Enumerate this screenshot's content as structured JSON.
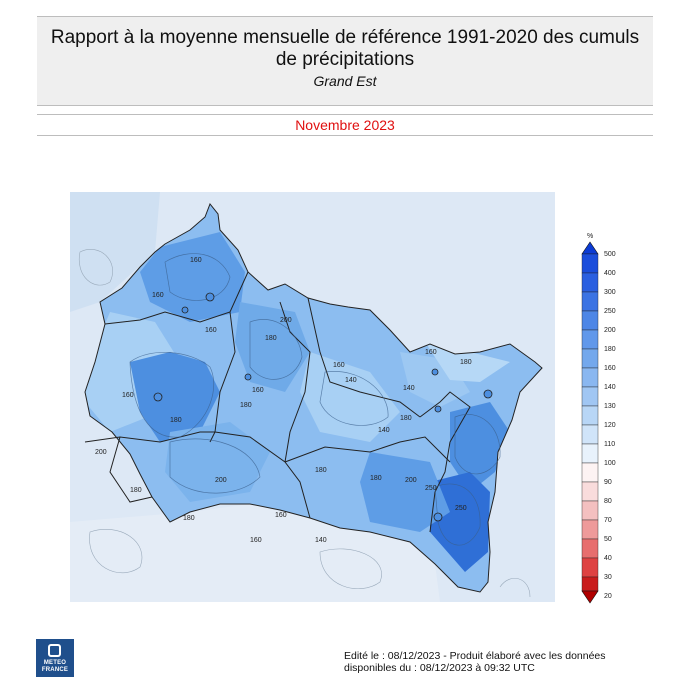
{
  "header": {
    "title_line1": "Rapport à la moyenne mensuelle de référence 1991-2020 des cumuls",
    "title_line2": "de précipitations",
    "region": "Grand Est",
    "month": "Novembre 2023"
  },
  "colors": {
    "month": "#e01010",
    "map_light": "#a8d0f4",
    "map_mid": "#6faae8",
    "map_dark": "#4d8fe0",
    "map_darkest": "#2f6fd6",
    "outside": "#dde8f5"
  },
  "legend": {
    "unit": "%",
    "levels": [
      "500",
      "400",
      "300",
      "250",
      "200",
      "180",
      "160",
      "140",
      "130",
      "120",
      "110",
      "100",
      "90",
      "80",
      "70",
      "50",
      "40",
      "30",
      "20"
    ]
  },
  "map_labels": [
    "160",
    "160",
    "160",
    "180",
    "200",
    "160",
    "180",
    "160",
    "180",
    "200",
    "140",
    "140",
    "160",
    "140",
    "160",
    "180",
    "180",
    "180",
    "200",
    "180",
    "200",
    "250",
    "250",
    "180",
    "160",
    "160",
    "180",
    "140"
  ],
  "logo": {
    "line1": "METEO",
    "line2": "FRANCE"
  },
  "footer": {
    "line1": "Edité le : 08/12/2023 - Produit élaboré avec les données",
    "line2": "disponibles du : 08/12/2023 à 09:32 UTC"
  }
}
